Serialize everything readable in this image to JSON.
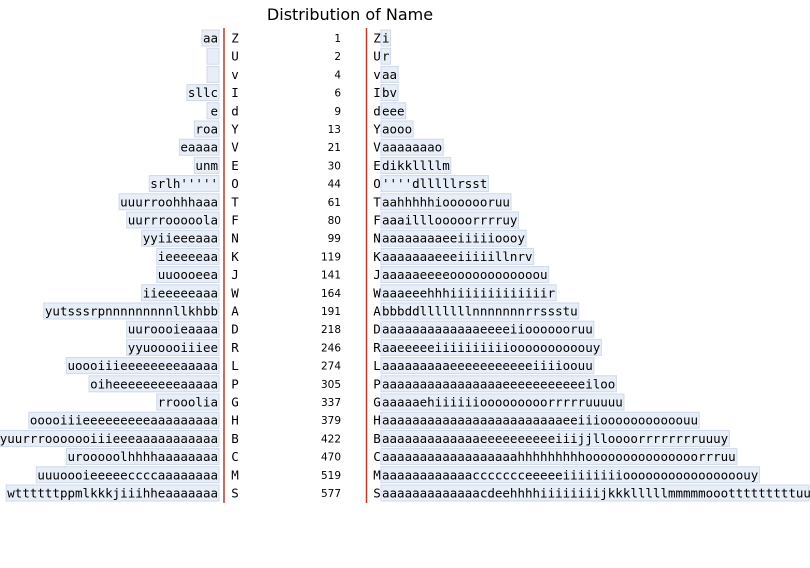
{
  "chart_data": {
    "type": "table",
    "title": "Distribution of Name",
    "rows": [
      {
        "left": "aa",
        "initial": "Z",
        "count": 1,
        "right": "i"
      },
      {
        "left": "",
        "initial": "U",
        "count": 2,
        "right": "r"
      },
      {
        "left": "",
        "initial": "v",
        "count": 4,
        "right": "aa"
      },
      {
        "left": "sllc",
        "initial": "I",
        "count": 6,
        "right": "bv"
      },
      {
        "left": "e",
        "initial": "d",
        "count": 9,
        "right": "eee"
      },
      {
        "left": "roa",
        "initial": "Y",
        "count": 13,
        "right": "aooo"
      },
      {
        "left": "eaaaa",
        "initial": "V",
        "count": 21,
        "right": "aaaaaaao"
      },
      {
        "left": "unm",
        "initial": "E",
        "count": 30,
        "right": "dikkllllm"
      },
      {
        "left": "srlh'''''",
        "initial": "O",
        "count": 44,
        "right": "''''dlllllrsst"
      },
      {
        "left": "uuurroohhhaaa",
        "initial": "T",
        "count": 61,
        "right": "aahhhhhiooooooruu"
      },
      {
        "left": "uurrrooooola",
        "initial": "F",
        "count": 80,
        "right": "aaailllooooorrrruy"
      },
      {
        "left": "yyiieeeaaa",
        "initial": "N",
        "count": 99,
        "right": "aaaaaaaaeeiiiiioooy"
      },
      {
        "left": "ieeeeeaa",
        "initial": "K",
        "count": 119,
        "right": "aaaaaaaeeeiiiiillnrv"
      },
      {
        "left": "uuoooeea",
        "initial": "J",
        "count": 141,
        "right": "aaaaaeeeeoooooooooooou"
      },
      {
        "left": "iieeeeeaaa",
        "initial": "W",
        "count": 164,
        "right": "aaaeeehhhiiiiiiiiiiiiir"
      },
      {
        "left": "yutsssrpnnnnnnnnnllkhbb",
        "initial": "A",
        "count": 191,
        "right": "bbbddlllllllnnnnnnnrrssstu"
      },
      {
        "left": "uuroooieaaaa",
        "initial": "D",
        "count": 218,
        "right": "aaaaaaaaaaaaaeeeeiiooooooruu"
      },
      {
        "left": "yyuooooiiiee",
        "initial": "R",
        "count": 246,
        "right": "aaeeeeeiiiiiiiiiioooooooooouy"
      },
      {
        "left": "uoooiiieeeeeeeeaaaaa",
        "initial": "L",
        "count": 274,
        "right": "aaaaaaaaaeeeeeeeeeeeiiiioouu"
      },
      {
        "left": "oiheeeeeeeeeaaaaa",
        "initial": "P",
        "count": 305,
        "right": "aaaaaaaaaaaaaaaaeeeeeeeeeeeiloo"
      },
      {
        "left": "rrooolia",
        "initial": "G",
        "count": 337,
        "right": "aaaaaehiiiiiiooooooooorrrrruuuuu"
      },
      {
        "left": "ooooiiieeeeeeeeeaaaaaaaaa",
        "initial": "H",
        "count": 379,
        "right": "aaaaaaaaaaaaaaaaaaaaaaaaeeiiiooooooooooouu"
      },
      {
        "left": "yuurrrooooooiiieeeaaaaaaaaaaa",
        "initial": "B",
        "count": 422,
        "right": "aaaaaaaaaaaaaeeeeeeeeeeiiijjlloooorrrrrrrruuuy"
      },
      {
        "left": "urooooolhhhhaaaaaaaa",
        "initial": "C",
        "count": 470,
        "right": "aaaaaaaaaaaaaaaaaahhhhhhhhhooooooooooooooorrruu"
      },
      {
        "left": "uuuoooieeeeeccccaaaaaaaa",
        "initial": "M",
        "count": 519,
        "right": "aaaaaaaaaaaaccccccceeeeeiiiiiiiioooooooooooooooouy"
      },
      {
        "left": "wttttttppmlkkkjiiihheaaaaaaa",
        "initial": "S",
        "count": 577,
        "right": "aaaaaaaaaaaaacdeehhhhiiiiiiiijkkklllllmmmmmoootttttttttuuuuvv"
      }
    ]
  }
}
